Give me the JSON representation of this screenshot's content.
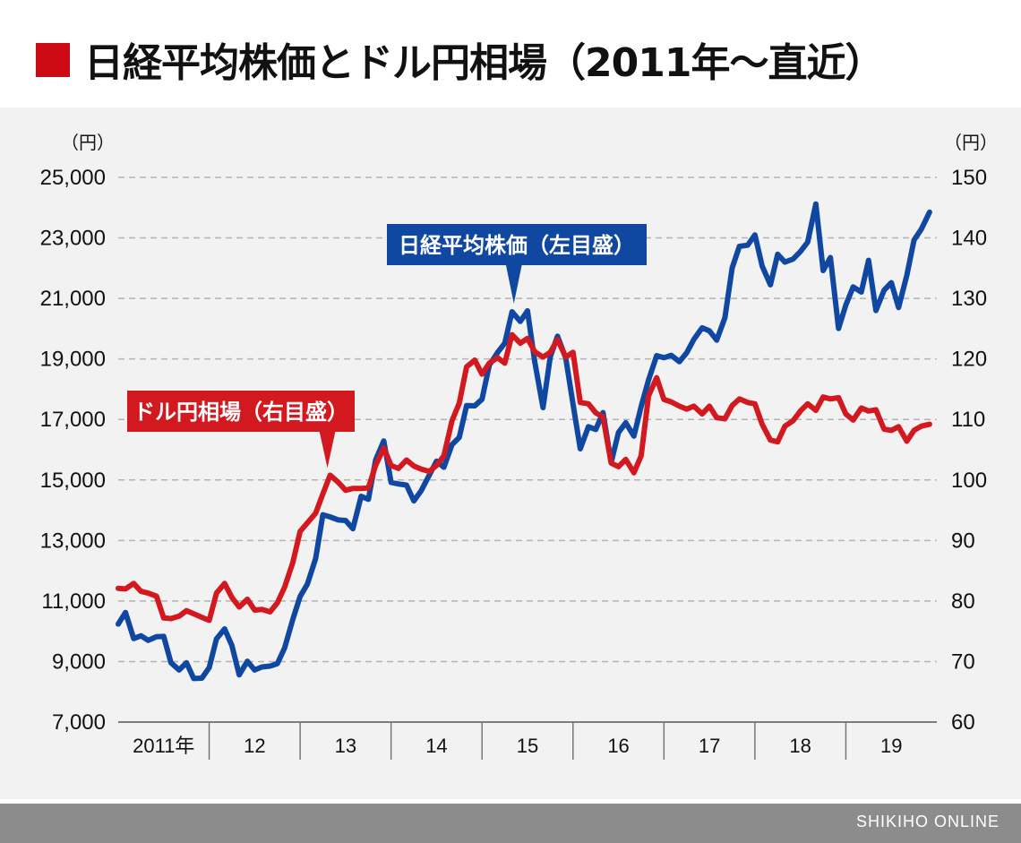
{
  "title": "日経平均株価とドル円相場（2011年〜直近）",
  "footer": "SHIKIHO ONLINE",
  "colors": {
    "nikkei": "#0f47a1",
    "usdjpy": "#d21920",
    "accent": "#cc0a14",
    "grid": "#b3b3b3",
    "footer": "#8c8c8c"
  },
  "chart_data": {
    "type": "line",
    "title": "日経平均株価とドル円相場（2011年〜直近）",
    "left_axis": {
      "unit": "（円）",
      "range": [
        7000,
        25000
      ],
      "ticks": [
        "7,000",
        "9,000",
        "11,000",
        "13,000",
        "15,000",
        "17,000",
        "19,000",
        "21,000",
        "23,000",
        "25,000"
      ],
      "tick_values": [
        7000,
        9000,
        11000,
        13000,
        15000,
        17000,
        19000,
        21000,
        23000,
        25000
      ]
    },
    "right_axis": {
      "unit": "（円）",
      "range": [
        60,
        150
      ],
      "ticks": [
        "60",
        "70",
        "80",
        "90",
        "100",
        "110",
        "120",
        "130",
        "140",
        "150"
      ],
      "tick_values": [
        60,
        70,
        80,
        90,
        100,
        110,
        120,
        130,
        140,
        150
      ]
    },
    "x_range": [
      2011.0,
      2020.0
    ],
    "x_labels": [
      {
        "label": "2011年",
        "x": 2011.5
      },
      {
        "label": "12",
        "x": 2012.5
      },
      {
        "label": "13",
        "x": 2013.5
      },
      {
        "label": "14",
        "x": 2014.5
      },
      {
        "label": "15",
        "x": 2015.5
      },
      {
        "label": "16",
        "x": 2016.5
      },
      {
        "label": "17",
        "x": 2017.5
      },
      {
        "label": "18",
        "x": 2018.5
      },
      {
        "label": "19",
        "x": 2019.5
      }
    ],
    "x_dividers": [
      2012,
      2013,
      2014,
      2015,
      2016,
      2017,
      2018,
      2019
    ],
    "series": [
      {
        "name": "日経平均株価",
        "axis": "left",
        "callout": "日経平均株価（左目盛）",
        "x": [
          2011.0,
          2011.08,
          2011.17,
          2011.25,
          2011.33,
          2011.42,
          2011.5,
          2011.58,
          2011.67,
          2011.75,
          2011.83,
          2011.92,
          2012.0,
          2012.08,
          2012.17,
          2012.25,
          2012.33,
          2012.42,
          2012.5,
          2012.58,
          2012.67,
          2012.75,
          2012.83,
          2012.92,
          2013.0,
          2013.08,
          2013.17,
          2013.25,
          2013.33,
          2013.42,
          2013.5,
          2013.58,
          2013.67,
          2013.75,
          2013.83,
          2013.92,
          2014.0,
          2014.08,
          2014.17,
          2014.25,
          2014.33,
          2014.42,
          2014.5,
          2014.58,
          2014.67,
          2014.75,
          2014.83,
          2014.92,
          2015.0,
          2015.08,
          2015.17,
          2015.25,
          2015.33,
          2015.42,
          2015.5,
          2015.58,
          2015.67,
          2015.75,
          2015.83,
          2015.92,
          2016.0,
          2016.08,
          2016.17,
          2016.25,
          2016.33,
          2016.42,
          2016.5,
          2016.58,
          2016.67,
          2016.75,
          2016.83,
          2016.92,
          2017.0,
          2017.08,
          2017.17,
          2017.25,
          2017.33,
          2017.42,
          2017.5,
          2017.58,
          2017.67,
          2017.75,
          2017.83,
          2017.92,
          2018.0,
          2018.08,
          2018.17,
          2018.25,
          2018.33,
          2018.42,
          2018.5,
          2018.58,
          2018.67,
          2018.75,
          2018.83,
          2018.92,
          2019.0,
          2019.08,
          2019.17,
          2019.25,
          2019.33,
          2019.42,
          2019.5,
          2019.58,
          2019.67,
          2019.75,
          2019.83,
          2019.92
        ],
        "values": [
          10240,
          10620,
          9760,
          9850,
          9700,
          9820,
          9830,
          8960,
          8720,
          8960,
          8440,
          8450,
          8800,
          9750,
          10080,
          9530,
          8560,
          9010,
          8720,
          8820,
          8850,
          8930,
          9450,
          10400,
          11150,
          11560,
          12400,
          13850,
          13780,
          13680,
          13660,
          13390,
          14460,
          14360,
          15660,
          16290,
          14920,
          14870,
          14830,
          14310,
          14640,
          15160,
          15620,
          15420,
          16170,
          16410,
          17460,
          17450,
          17670,
          18790,
          19210,
          19520,
          20560,
          20240,
          20590,
          18900,
          17390,
          19070,
          19750,
          19030,
          17510,
          16030,
          16760,
          16670,
          17230,
          15580,
          16570,
          16890,
          16450,
          17430,
          18300,
          19110,
          19040,
          19120,
          18910,
          19200,
          19650,
          20030,
          19930,
          19620,
          20360,
          22010,
          22720,
          22760,
          23100,
          22070,
          21450,
          22460,
          22200,
          22300,
          22550,
          22860,
          24120,
          21920,
          22350,
          20010,
          20780,
          21380,
          21210,
          22260,
          20600,
          21270,
          21520,
          20700,
          21760,
          22930,
          23290,
          23850
        ]
      },
      {
        "name": "ドル円相場",
        "axis": "right",
        "callout": "ドル円相場（右目盛）",
        "x": [
          2011.0,
          2011.08,
          2011.17,
          2011.25,
          2011.33,
          2011.42,
          2011.5,
          2011.58,
          2011.67,
          2011.75,
          2011.83,
          2011.92,
          2012.0,
          2012.08,
          2012.17,
          2012.25,
          2012.33,
          2012.42,
          2012.5,
          2012.58,
          2012.67,
          2012.75,
          2012.83,
          2012.92,
          2013.0,
          2013.08,
          2013.17,
          2013.25,
          2013.33,
          2013.42,
          2013.5,
          2013.58,
          2013.67,
          2013.75,
          2013.83,
          2013.92,
          2014.0,
          2014.08,
          2014.17,
          2014.25,
          2014.33,
          2014.42,
          2014.5,
          2014.58,
          2014.67,
          2014.75,
          2014.83,
          2014.92,
          2015.0,
          2015.08,
          2015.17,
          2015.25,
          2015.33,
          2015.42,
          2015.5,
          2015.58,
          2015.67,
          2015.75,
          2015.83,
          2015.92,
          2016.0,
          2016.08,
          2016.17,
          2016.25,
          2016.33,
          2016.42,
          2016.5,
          2016.58,
          2016.67,
          2016.75,
          2016.83,
          2016.92,
          2017.0,
          2017.08,
          2017.17,
          2017.25,
          2017.33,
          2017.42,
          2017.5,
          2017.58,
          2017.67,
          2017.75,
          2017.83,
          2017.92,
          2018.0,
          2018.08,
          2018.17,
          2018.25,
          2018.33,
          2018.42,
          2018.5,
          2018.58,
          2018.67,
          2018.75,
          2018.83,
          2018.92,
          2019.0,
          2019.08,
          2019.17,
          2019.25,
          2019.33,
          2019.42,
          2019.5,
          2019.58,
          2019.67,
          2019.75,
          2019.83,
          2019.92
        ],
        "values": [
          82.1,
          82.0,
          82.9,
          81.6,
          81.3,
          80.8,
          77.2,
          77.1,
          77.5,
          78.4,
          77.9,
          77.3,
          76.8,
          81.3,
          82.9,
          80.6,
          79.0,
          80.3,
          78.5,
          78.6,
          78.2,
          79.7,
          82.3,
          86.4,
          91.5,
          92.9,
          94.5,
          97.7,
          100.8,
          99.6,
          98.3,
          98.6,
          98.6,
          98.7,
          102.4,
          105.3,
          102.4,
          101.9,
          103.3,
          102.3,
          101.8,
          101.4,
          102.4,
          104.0,
          109.8,
          112.7,
          118.7,
          119.8,
          117.5,
          119.3,
          120.2,
          119.3,
          124.0,
          122.6,
          123.4,
          121.2,
          120.3,
          121.1,
          123.2,
          120.3,
          121.1,
          112.8,
          112.6,
          111.1,
          110.4,
          102.8,
          102.2,
          103.4,
          101.2,
          104.0,
          113.9,
          116.9,
          113.3,
          112.9,
          112.2,
          111.7,
          112.2,
          110.9,
          112.2,
          110.3,
          110.1,
          112.3,
          113.4,
          112.8,
          112.6,
          109.2,
          106.6,
          106.3,
          108.9,
          109.8,
          111.4,
          112.6,
          111.5,
          113.7,
          113.4,
          113.6,
          110.9,
          109.9,
          111.9,
          111.4,
          111.6,
          108.4,
          108.2,
          108.8,
          106.4,
          108.2,
          108.9,
          109.2
        ]
      }
    ],
    "annotations": [
      {
        "text": "日経平均株価（左目盛）",
        "series": "日経平均株価",
        "points_to": [
          2015.35,
          20590
        ]
      },
      {
        "text": "ドル円相場（右目盛）",
        "series": "ドル円相場",
        "points_to": [
          2013.3,
          100.8
        ]
      }
    ]
  }
}
